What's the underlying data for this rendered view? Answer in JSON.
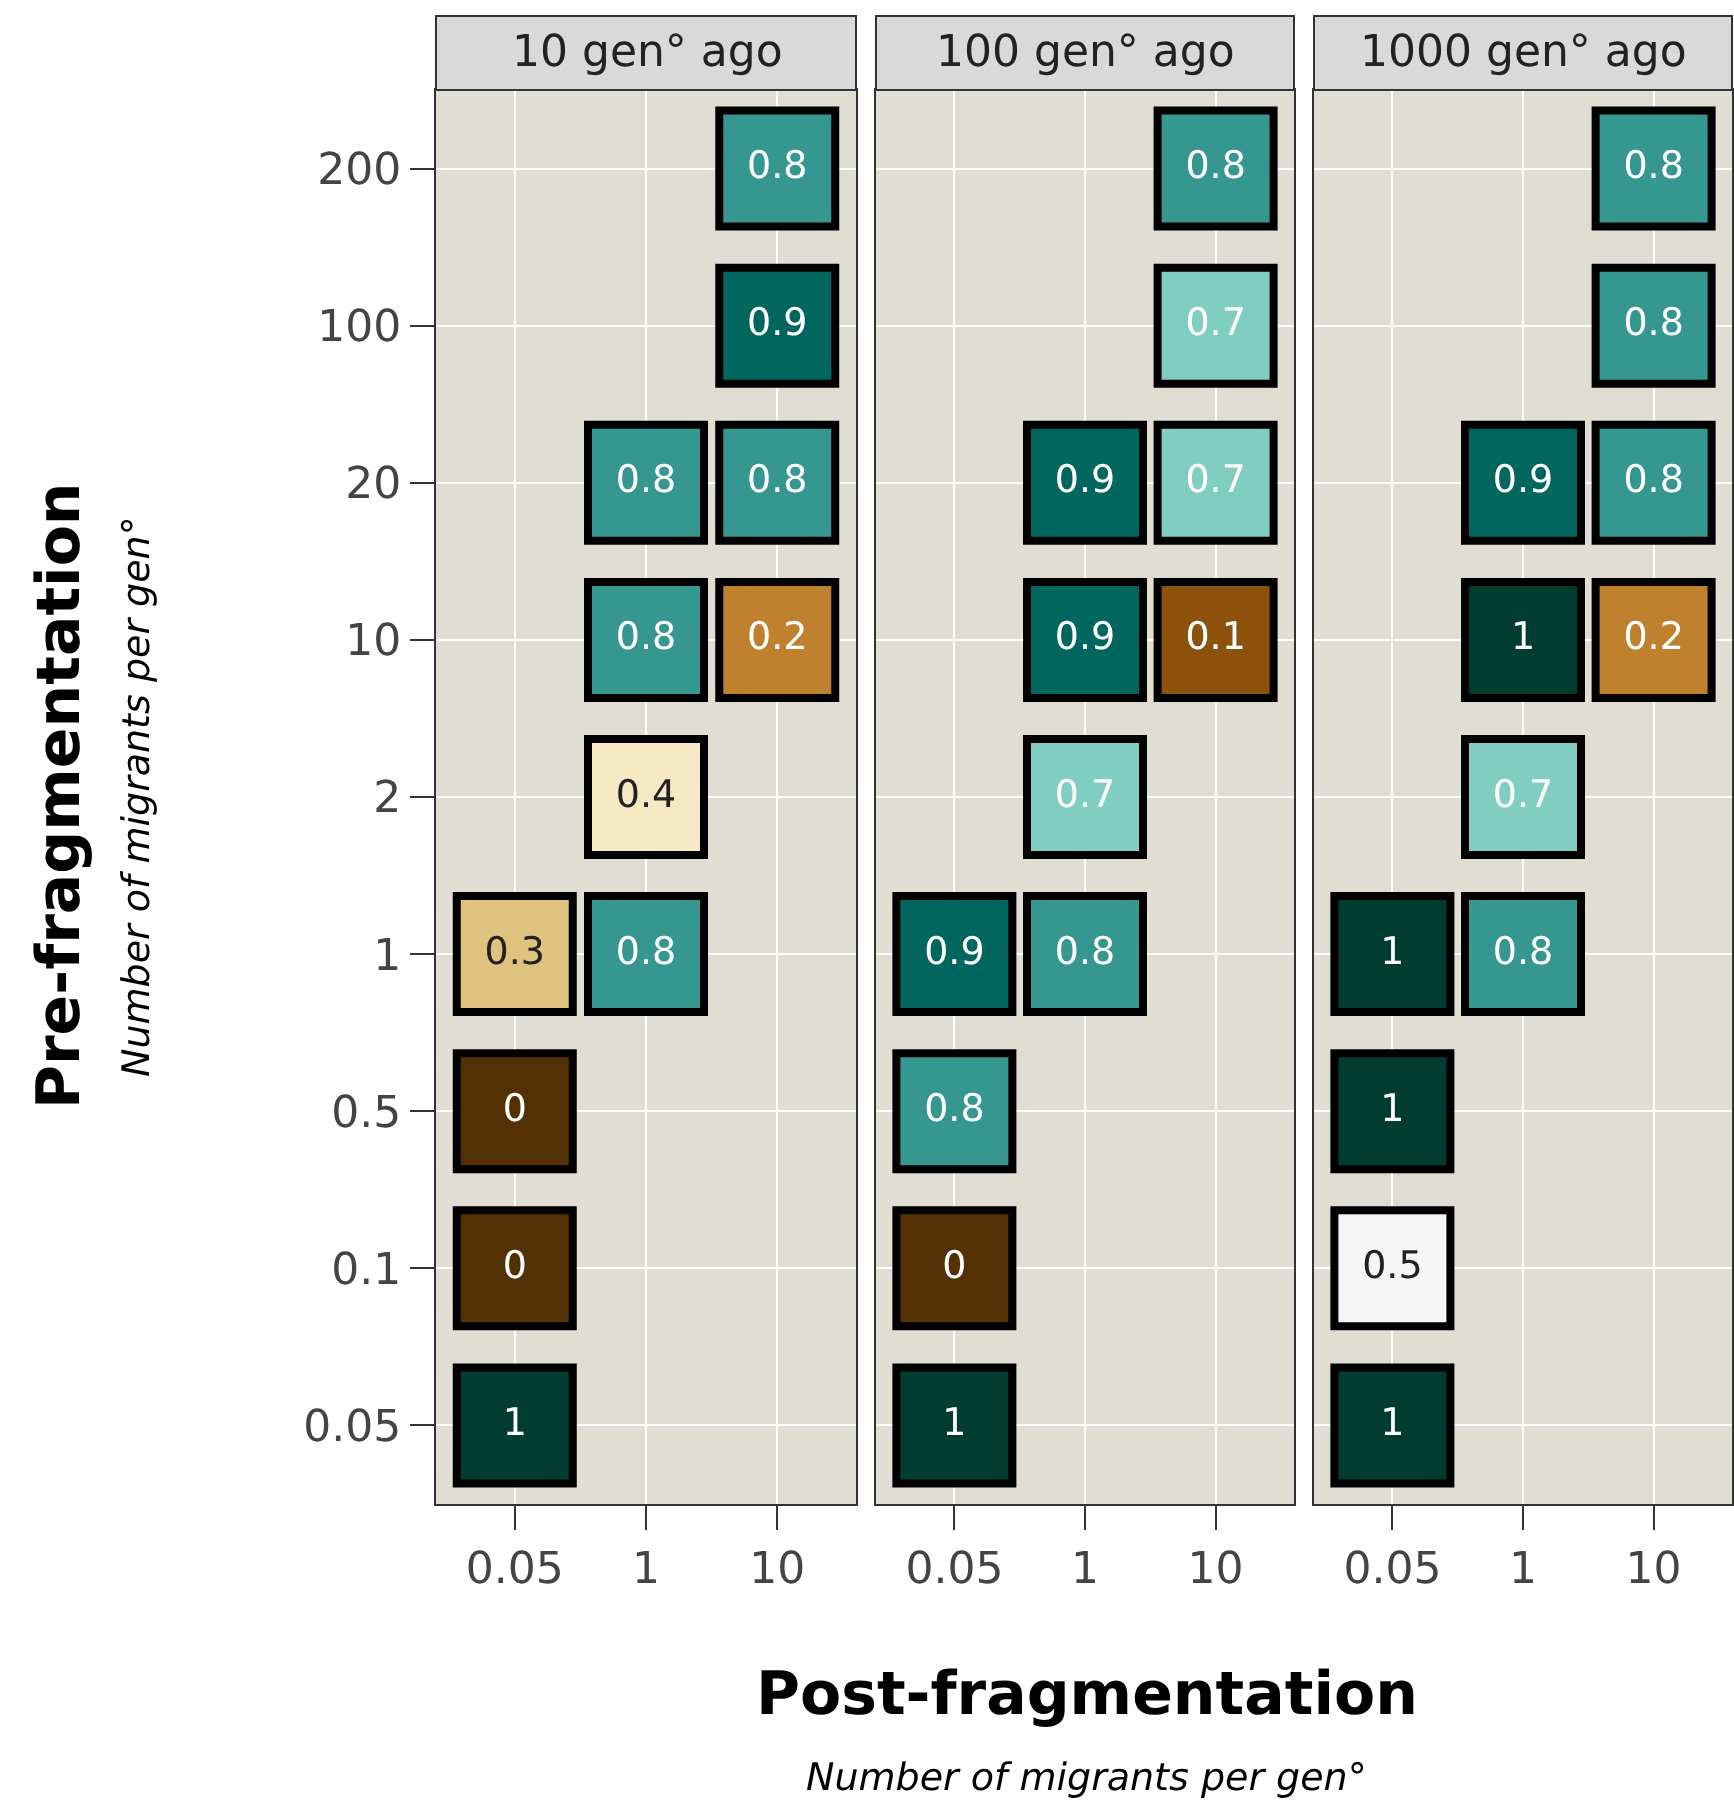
{
  "chart_data": [
    {
      "type": "heatmap",
      "title": "10 gen° ago",
      "ylabel": "Pre-fragmentation",
      "annotations": [
        "Number of migrants per gen°"
      ],
      "categories": [
        "0.05",
        "1",
        "10"
      ],
      "y_categories": [
        "200",
        "100",
        "20",
        "10",
        "2",
        "1",
        "0.5",
        "0.1",
        "0.05"
      ],
      "grid": true,
      "data_labels": true,
      "cells": [
        [
          null,
          null,
          0.8
        ],
        [
          null,
          null,
          0.9
        ],
        [
          null,
          0.8,
          0.8
        ],
        [
          null,
          0.8,
          0.2
        ],
        [
          null,
          0.4,
          null
        ],
        [
          0.3,
          0.8,
          null
        ],
        [
          0,
          null,
          null
        ],
        [
          0,
          null,
          null
        ],
        [
          1,
          null,
          null
        ]
      ]
    },
    {
      "type": "heatmap",
      "title": "100 gen° ago",
      "xlabel": "Post-fragmentation",
      "annotations": [
        "Number of migrants per gen°"
      ],
      "categories": [
        "0.05",
        "1",
        "10"
      ],
      "y_categories": [
        "200",
        "100",
        "20",
        "10",
        "2",
        "1",
        "0.5",
        "0.1",
        "0.05"
      ],
      "grid": true,
      "tick_labels": "x",
      "data_labels": true,
      "cells": [
        [
          null,
          null,
          0.8
        ],
        [
          null,
          null,
          0.7
        ],
        [
          null,
          0.9,
          0.7
        ],
        [
          null,
          0.9,
          0.1
        ],
        [
          null,
          0.7,
          null
        ],
        [
          0.9,
          0.8,
          null
        ],
        [
          0.8,
          null,
          null
        ],
        [
          0,
          null,
          null
        ],
        [
          1,
          null,
          null
        ]
      ]
    },
    {
      "type": "heatmap",
      "title": "1000 gen° ago",
      "categories": [
        "0.05",
        "1",
        "10"
      ],
      "y_categories": [
        "200",
        "100",
        "20",
        "10",
        "2",
        "1",
        "0.5",
        "0.1",
        "0.05"
      ],
      "grid": true,
      "tick_labels": "x",
      "data_labels": true,
      "cells": [
        [
          null,
          null,
          0.8
        ],
        [
          null,
          null,
          0.8
        ],
        [
          null,
          0.9,
          0.8
        ],
        [
          null,
          1,
          0.2
        ],
        [
          null,
          0.7,
          null
        ],
        [
          1,
          0.8,
          null
        ],
        [
          1,
          null,
          null
        ],
        [
          0.5,
          null,
          null
        ],
        [
          1,
          null,
          null
        ]
      ]
    }
  ]
}
